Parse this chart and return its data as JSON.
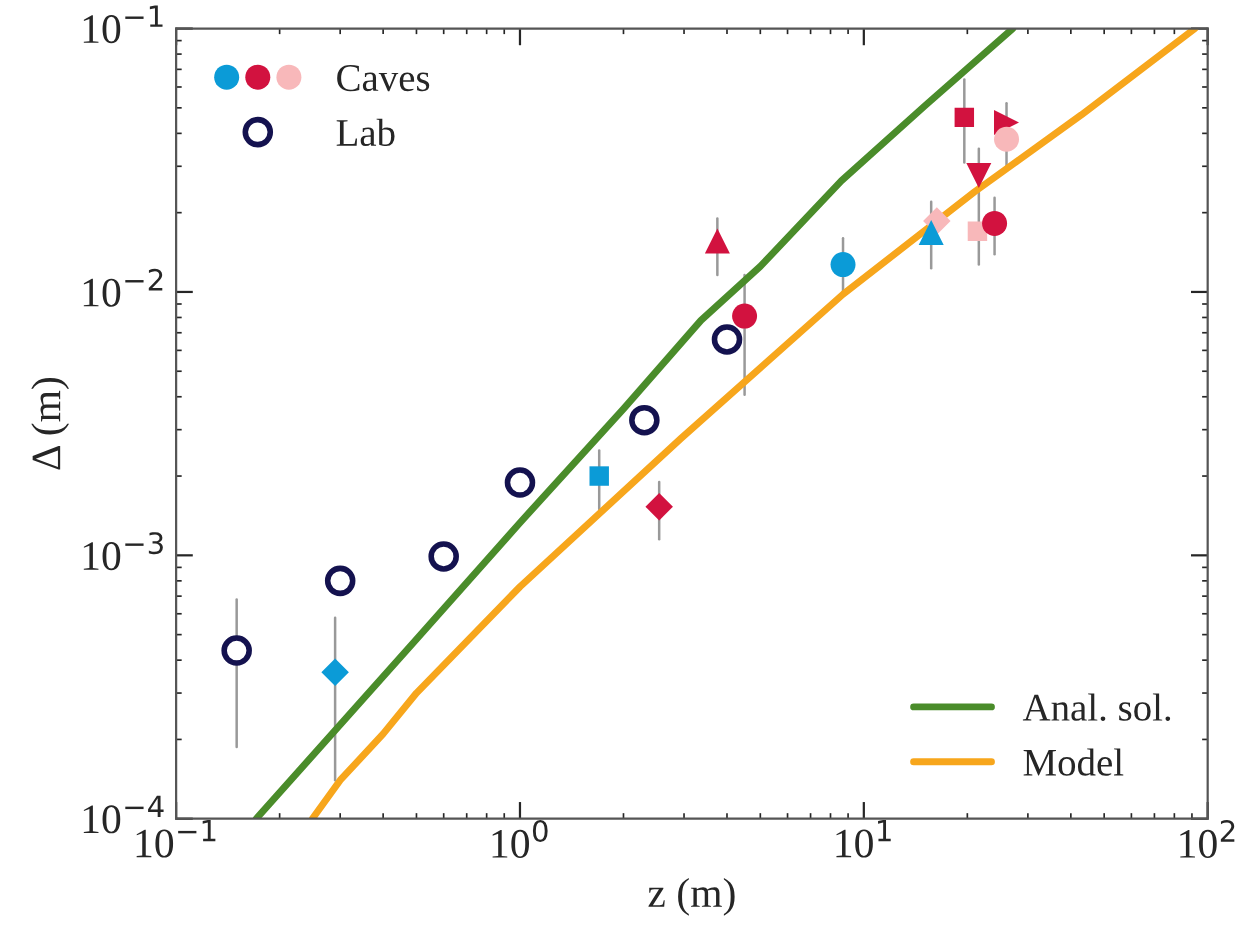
{
  "chart_data": {
    "type": "scatter",
    "xlabel": "z (m)",
    "ylabel": "Δ (m)",
    "log": "xy",
    "xlim": [
      0.1,
      100
    ],
    "ylim": [
      0.0001,
      0.1
    ],
    "xticks": [
      {
        "value": 0.1,
        "label": "10$^{−1}$"
      },
      {
        "value": 1,
        "label": "10$^{0}$"
      },
      {
        "value": 10,
        "label": "10$^{1}$"
      },
      {
        "value": 100,
        "label": "10$^{2}$"
      }
    ],
    "yticks": [
      {
        "value": 0.0001,
        "label": "10$^{−4}$"
      },
      {
        "value": 0.001,
        "label": "10$^{−3}$"
      },
      {
        "value": 0.01,
        "label": "10$^{−2}$"
      },
      {
        "value": 0.1,
        "label": "10$^{−1}$"
      }
    ],
    "grid": false,
    "legend": "top left",
    "series": [
      {
        "name": "Caves",
        "x": [
          0.29,
          1.7,
          2.54,
          3.75,
          4.5,
          8.7,
          16.3,
          15.7,
          21.4,
          24,
          21.6,
          19.6,
          26,
          26
        ],
        "values": [
          0.00036,
          0.002,
          0.00153,
          0.0156,
          0.0081,
          0.0127,
          0.0186,
          0.0168,
          0.017,
          0.0182,
          0.0277,
          0.046,
          0.044,
          0.038
        ],
        "colors": [
          "#0b9bd7",
          "#0b9bd7",
          "#d2123f",
          "#d2123f",
          "#d2123f",
          "#0b9bd7",
          "#f8b8ba",
          "#0b9bd7",
          "#f8b8ba",
          "#d2123f",
          "#d2123f",
          "#d2123f",
          "#d2123f",
          "#f8b8ba"
        ],
        "marker": [
          "diamond",
          "square",
          "diamond",
          "triangle",
          "circle",
          "circle",
          "diamond",
          "triangle",
          "square",
          "circle",
          "triangle_down",
          "square",
          "triangle_right",
          "circle"
        ],
        "errors": [
          [
            0.00014,
            0.00058
          ],
          [
            0.0015,
            0.0025
          ],
          [
            0.00115,
            0.0019
          ],
          [
            0.0116,
            0.019
          ],
          [
            0.00407,
            0.0116
          ],
          [
            0.0098,
            0.016
          ],
          null,
          [
            0.0123,
            0.022
          ],
          null,
          [
            0.0139,
            0.0228
          ],
          [
            0.0127,
            0.035
          ],
          [
            0.031,
            0.064
          ],
          null,
          [
            0.029,
            0.052
          ]
        ]
      },
      {
        "name": "Lab",
        "x": [
          0.15,
          0.3,
          0.6,
          1.0,
          2.3,
          4.0
        ],
        "values": [
          0.000435,
          0.0008,
          0.00099,
          0.00189,
          0.00326,
          0.0066
        ],
        "color": "#14124f",
        "marker": "open_circle",
        "errors": [
          [
            0.000187,
            0.00068
          ],
          null,
          null,
          null,
          null,
          null
        ]
      },
      {
        "name": "Anal. sol.",
        "type": "line",
        "color": "#4a8c2a",
        "x": [
          0.171,
          0.5,
          1,
          2,
          3.36,
          5,
          8.6,
          15,
          27.1
        ],
        "values": [
          0.0001,
          0.00048,
          0.00133,
          0.0036,
          0.0078,
          0.0125,
          0.0264,
          0.0507,
          0.1
        ]
      },
      {
        "name": "Model",
        "type": "line",
        "color": "#f7a61c",
        "x": [
          0.249,
          0.3,
          0.4,
          0.5,
          1,
          2.94,
          8.7,
          21,
          42.9,
          91.8
        ],
        "values": [
          0.0001,
          0.00014,
          0.00021,
          0.0003,
          0.00076,
          0.00278,
          0.0098,
          0.024,
          0.047,
          0.1
        ]
      }
    ]
  }
}
